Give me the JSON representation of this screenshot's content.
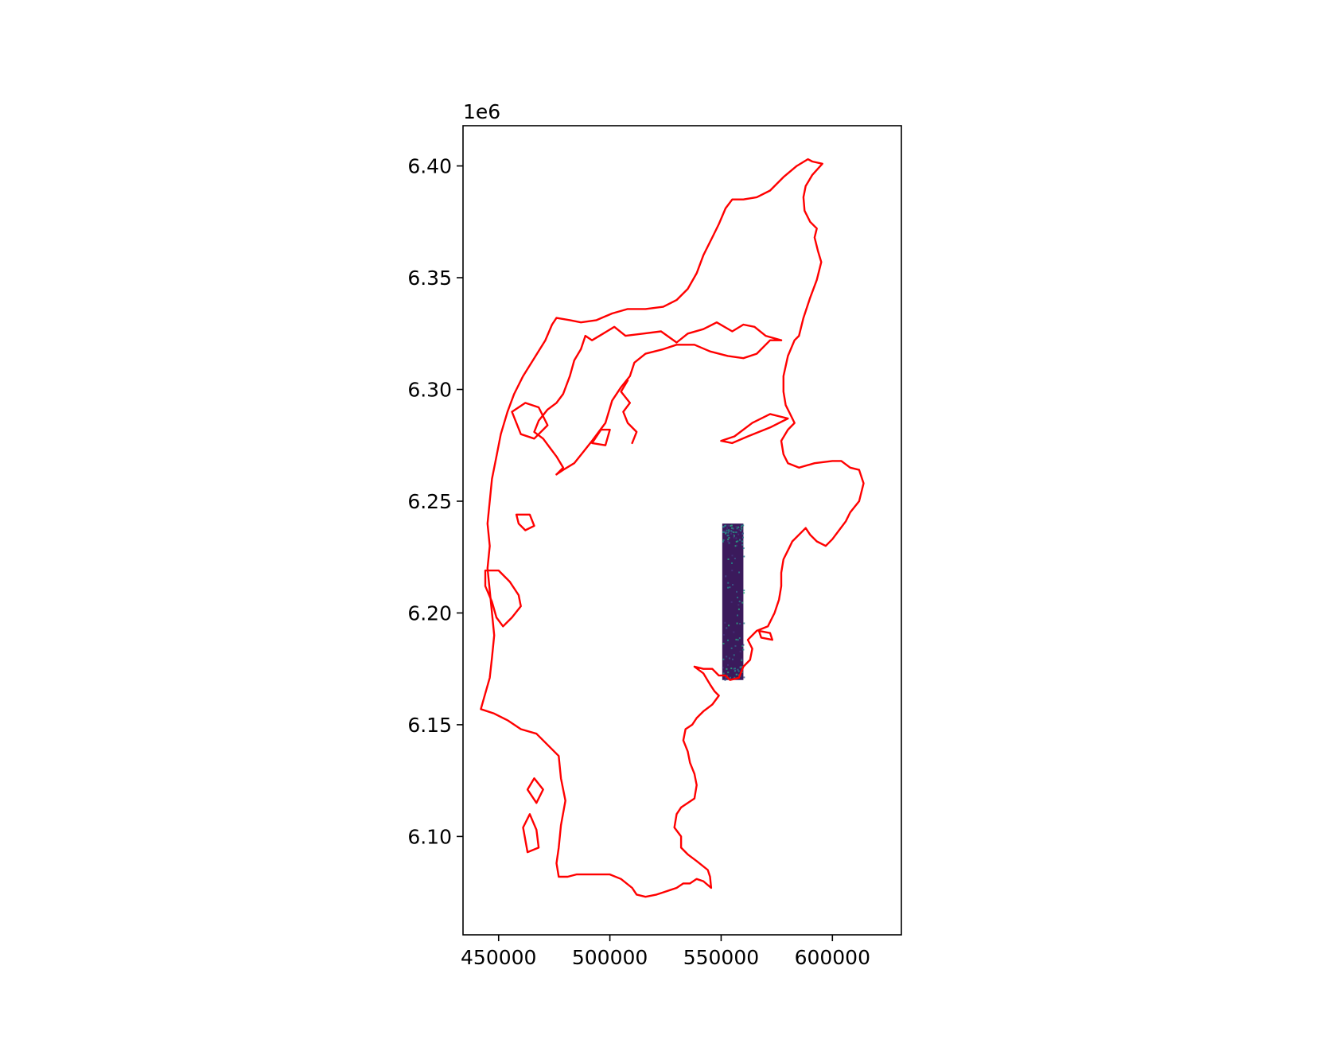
{
  "chart_data": {
    "type": "map",
    "x_axis": {
      "range": [
        434000,
        631000
      ],
      "ticks": [
        450000,
        500000,
        550000,
        600000
      ],
      "tick_labels": [
        "450000",
        "500000",
        "550000",
        "600000"
      ]
    },
    "y_axis": {
      "range": [
        6056000,
        6418000
      ],
      "offset_label": "1e6",
      "ticks": [
        6100000,
        6150000,
        6200000,
        6250000,
        6300000,
        6350000,
        6400000
      ],
      "tick_labels": [
        "6.10",
        "6.15",
        "6.20",
        "6.25",
        "6.30",
        "6.35",
        "6.40"
      ]
    },
    "layers": [
      {
        "kind": "raster",
        "colormap": "viridis",
        "background_color": "#3b1a5c",
        "extent": {
          "xmin": 550500,
          "xmax": 560000,
          "ymin": 6170000,
          "ymax": 6240000
        }
      },
      {
        "kind": "outline",
        "color": "#ff0000",
        "main_coast": [
          [
            591000,
            6402000
          ],
          [
            595500,
            6401000
          ],
          [
            591000,
            6396000
          ],
          [
            588000,
            6391000
          ],
          [
            587000,
            6386000
          ],
          [
            587500,
            6380000
          ],
          [
            590000,
            6375000
          ],
          [
            593000,
            6372000
          ],
          [
            592000,
            6368000
          ],
          [
            593500,
            6362000
          ],
          [
            595000,
            6357000
          ],
          [
            593000,
            6349000
          ],
          [
            590000,
            6341000
          ],
          [
            587000,
            6332000
          ],
          [
            585000,
            6324000
          ],
          [
            583000,
            6322000
          ],
          [
            580000,
            6315000
          ],
          [
            578000,
            6306000
          ],
          [
            578000,
            6299000
          ],
          [
            579000,
            6293000
          ],
          [
            581000,
            6289000
          ],
          [
            583000,
            6285000
          ],
          [
            580000,
            6282000
          ],
          [
            577000,
            6277000
          ],
          [
            578000,
            6271000
          ],
          [
            580000,
            6267000
          ],
          [
            585000,
            6265000
          ],
          [
            592000,
            6267000
          ],
          [
            600000,
            6268000
          ],
          [
            604000,
            6268000
          ],
          [
            608000,
            6265000
          ],
          [
            612000,
            6264000
          ],
          [
            614000,
            6258000
          ],
          [
            612000,
            6250000
          ],
          [
            608000,
            6245000
          ],
          [
            606000,
            6241000
          ],
          [
            603000,
            6237000
          ],
          [
            600000,
            6233000
          ],
          [
            597000,
            6230000
          ],
          [
            593000,
            6232000
          ],
          [
            590000,
            6235000
          ],
          [
            588000,
            6238000
          ],
          [
            586000,
            6236000
          ],
          [
            582000,
            6232000
          ],
          [
            580000,
            6228000
          ],
          [
            578000,
            6224000
          ],
          [
            577000,
            6218000
          ],
          [
            577000,
            6212000
          ],
          [
            576000,
            6206000
          ],
          [
            574000,
            6200000
          ],
          [
            571000,
            6194000
          ],
          [
            566000,
            6192000
          ],
          [
            562000,
            6188000
          ],
          [
            564000,
            6184000
          ],
          [
            563000,
            6179000
          ],
          [
            560000,
            6176000
          ],
          [
            558000,
            6171000
          ],
          [
            554000,
            6170000
          ],
          [
            552000,
            6172000
          ],
          [
            549000,
            6172000
          ],
          [
            546000,
            6175000
          ],
          [
            542000,
            6175000
          ],
          [
            538000,
            6176000
          ],
          [
            542000,
            6173000
          ],
          [
            545000,
            6168000
          ],
          [
            547000,
            6165000
          ],
          [
            549000,
            6163000
          ],
          [
            546000,
            6159000
          ],
          [
            542000,
            6156000
          ],
          [
            539000,
            6153000
          ],
          [
            537000,
            6150000
          ],
          [
            534000,
            6148000
          ],
          [
            533000,
            6143000
          ],
          [
            535000,
            6138000
          ],
          [
            536000,
            6133000
          ],
          [
            538000,
            6128000
          ],
          [
            539000,
            6123000
          ],
          [
            538000,
            6117000
          ],
          [
            535000,
            6115000
          ],
          [
            532000,
            6113000
          ],
          [
            530000,
            6110000
          ],
          [
            529000,
            6104000
          ],
          [
            532000,
            6100000
          ],
          [
            532000,
            6095000
          ],
          [
            535000,
            6092000
          ],
          [
            539000,
            6089000
          ],
          [
            544000,
            6085000
          ],
          [
            545000,
            6082000
          ],
          [
            545500,
            6077000
          ],
          [
            542000,
            6080000
          ],
          [
            539000,
            6081000
          ],
          [
            536000,
            6079000
          ],
          [
            533000,
            6079000
          ],
          [
            530000,
            6077000
          ],
          [
            527000,
            6076000
          ],
          [
            524000,
            6075000
          ],
          [
            521000,
            6074000
          ],
          [
            516000,
            6073000
          ],
          [
            512000,
            6074000
          ],
          [
            510000,
            6077000
          ],
          [
            505000,
            6081000
          ],
          [
            500000,
            6083000
          ],
          [
            494000,
            6083000
          ],
          [
            489000,
            6083000
          ],
          [
            485000,
            6083000
          ],
          [
            481000,
            6082000
          ],
          [
            477000,
            6082000
          ],
          [
            476000,
            6088000
          ],
          [
            477000,
            6095000
          ],
          [
            478000,
            6105000
          ],
          [
            480000,
            6116000
          ],
          [
            478000,
            6126000
          ],
          [
            477000,
            6136000
          ],
          [
            472000,
            6141000
          ],
          [
            467000,
            6146000
          ],
          [
            460000,
            6148000
          ],
          [
            454000,
            6152000
          ],
          [
            448000,
            6155000
          ],
          [
            442000,
            6157000
          ],
          [
            444000,
            6164000
          ],
          [
            446000,
            6171000
          ],
          [
            447000,
            6180000
          ],
          [
            448000,
            6190000
          ],
          [
            447000,
            6200000
          ],
          [
            446000,
            6210000
          ],
          [
            445000,
            6220000
          ],
          [
            446000,
            6230000
          ],
          [
            445000,
            6240000
          ],
          [
            446000,
            6250000
          ],
          [
            447000,
            6260000
          ],
          [
            449000,
            6270000
          ],
          [
            451000,
            6280000
          ],
          [
            454000,
            6290000
          ],
          [
            457000,
            6298000
          ],
          [
            461000,
            6306000
          ],
          [
            466000,
            6314000
          ],
          [
            471000,
            6322000
          ],
          [
            474000,
            6329000
          ],
          [
            476000,
            6332000
          ],
          [
            482000,
            6331000
          ],
          [
            487000,
            6330000
          ],
          [
            494000,
            6331000
          ],
          [
            501000,
            6334000
          ],
          [
            508000,
            6336000
          ],
          [
            516000,
            6336000
          ],
          [
            524000,
            6337000
          ],
          [
            530000,
            6340000
          ],
          [
            535000,
            6345000
          ],
          [
            539000,
            6352000
          ],
          [
            542000,
            6360000
          ],
          [
            546000,
            6368000
          ],
          [
            549000,
            6374000
          ],
          [
            552000,
            6381000
          ],
          [
            555000,
            6385000
          ],
          [
            560000,
            6385000
          ],
          [
            566000,
            6386000
          ],
          [
            572000,
            6389000
          ],
          [
            578000,
            6395000
          ],
          [
            584000,
            6400000
          ],
          [
            589000,
            6403000
          ],
          [
            591000,
            6402000
          ]
        ],
        "fjord_north": [
          [
            577000,
            6322000
          ],
          [
            570000,
            6324000
          ],
          [
            565000,
            6328000
          ],
          [
            560000,
            6329000
          ],
          [
            555000,
            6326000
          ],
          [
            548000,
            6330000
          ],
          [
            542000,
            6327000
          ],
          [
            535000,
            6325000
          ],
          [
            530000,
            6321000
          ],
          [
            523000,
            6326000
          ],
          [
            515000,
            6325000
          ],
          [
            507000,
            6324000
          ],
          [
            502000,
            6328000
          ],
          [
            497000,
            6325000
          ],
          [
            492000,
            6322000
          ],
          [
            489000,
            6324000
          ],
          [
            487000,
            6318000
          ],
          [
            484000,
            6313000
          ],
          [
            482000,
            6306000
          ],
          [
            479000,
            6298000
          ],
          [
            476000,
            6294000
          ],
          [
            472000,
            6291000
          ],
          [
            468000,
            6286000
          ],
          [
            466000,
            6281000
          ],
          [
            470000,
            6278000
          ],
          [
            473000,
            6274000
          ],
          [
            476000,
            6270000
          ],
          [
            479000,
            6265000
          ],
          [
            476000,
            6262000
          ]
        ],
        "fjord_south": [
          [
            476000,
            6262000
          ],
          [
            479000,
            6264000
          ],
          [
            484000,
            6267000
          ],
          [
            488000,
            6272000
          ],
          [
            492000,
            6277000
          ],
          [
            498000,
            6285000
          ],
          [
            501000,
            6295000
          ],
          [
            505000,
            6301000
          ],
          [
            509000,
            6306000
          ],
          [
            511000,
            6312000
          ],
          [
            516000,
            6316000
          ],
          [
            524000,
            6318000
          ],
          [
            530000,
            6320000
          ],
          [
            538000,
            6320000
          ],
          [
            545000,
            6317000
          ],
          [
            553000,
            6315000
          ],
          [
            560000,
            6314000
          ],
          [
            566000,
            6316000
          ],
          [
            572000,
            6322000
          ],
          [
            577000,
            6322000
          ]
        ],
        "fjord_inner_branch": [
          [
            510000,
            6276000
          ],
          [
            512000,
            6281000
          ],
          [
            508000,
            6285000
          ],
          [
            506000,
            6290000
          ],
          [
            509000,
            6294000
          ],
          [
            505000,
            6299000
          ],
          [
            508000,
            6304000
          ]
        ],
        "islands": [
          [
            [
              444000,
              6219000
            ],
            [
              450000,
              6219000
            ],
            [
              455000,
              6214000
            ],
            [
              459000,
              6208000
            ],
            [
              460000,
              6203000
            ],
            [
              456000,
              6198000
            ],
            [
              452000,
              6194000
            ],
            [
              449000,
              6198000
            ],
            [
              447000,
              6205000
            ],
            [
              444000,
              6212000
            ],
            [
              444000,
              6219000
            ]
          ],
          [
            [
              458000,
              6244000
            ],
            [
              464000,
              6244000
            ],
            [
              466000,
              6239000
            ],
            [
              462000,
              6237000
            ],
            [
              459000,
              6240000
            ],
            [
              458000,
              6244000
            ]
          ],
          [
            [
              463000,
              6093000
            ],
            [
              468000,
              6095000
            ],
            [
              467000,
              6103000
            ],
            [
              464000,
              6110000
            ],
            [
              461000,
              6104000
            ],
            [
              463000,
              6093000
            ]
          ],
          [
            [
              467000,
              6115000
            ],
            [
              470000,
              6121000
            ],
            [
              466000,
              6126000
            ],
            [
              463000,
              6121000
            ],
            [
              467000,
              6115000
            ]
          ],
          [
            [
              567000,
              6192000
            ],
            [
              572000,
              6191000
            ],
            [
              573000,
              6188000
            ],
            [
              568000,
              6189000
            ],
            [
              567000,
              6192000
            ]
          ],
          [
            [
              550000,
              6277000
            ],
            [
              556000,
              6279000
            ],
            [
              564000,
              6285000
            ],
            [
              572000,
              6289000
            ],
            [
              580000,
              6287000
            ],
            [
              572000,
              6283000
            ],
            [
              562000,
              6279000
            ],
            [
              555000,
              6276000
            ],
            [
              550000,
              6277000
            ]
          ],
          [
            [
              456000,
              6290000
            ],
            [
              462000,
              6294000
            ],
            [
              468000,
              6292000
            ],
            [
              472000,
              6284000
            ],
            [
              466000,
              6278000
            ],
            [
              460000,
              6280000
            ],
            [
              456000,
              6290000
            ]
          ],
          [
            [
              492000,
              6276000
            ],
            [
              496000,
              6282000
            ],
            [
              500000,
              6282000
            ],
            [
              498000,
              6275000
            ],
            [
              492000,
              6276000
            ]
          ]
        ]
      }
    ]
  }
}
